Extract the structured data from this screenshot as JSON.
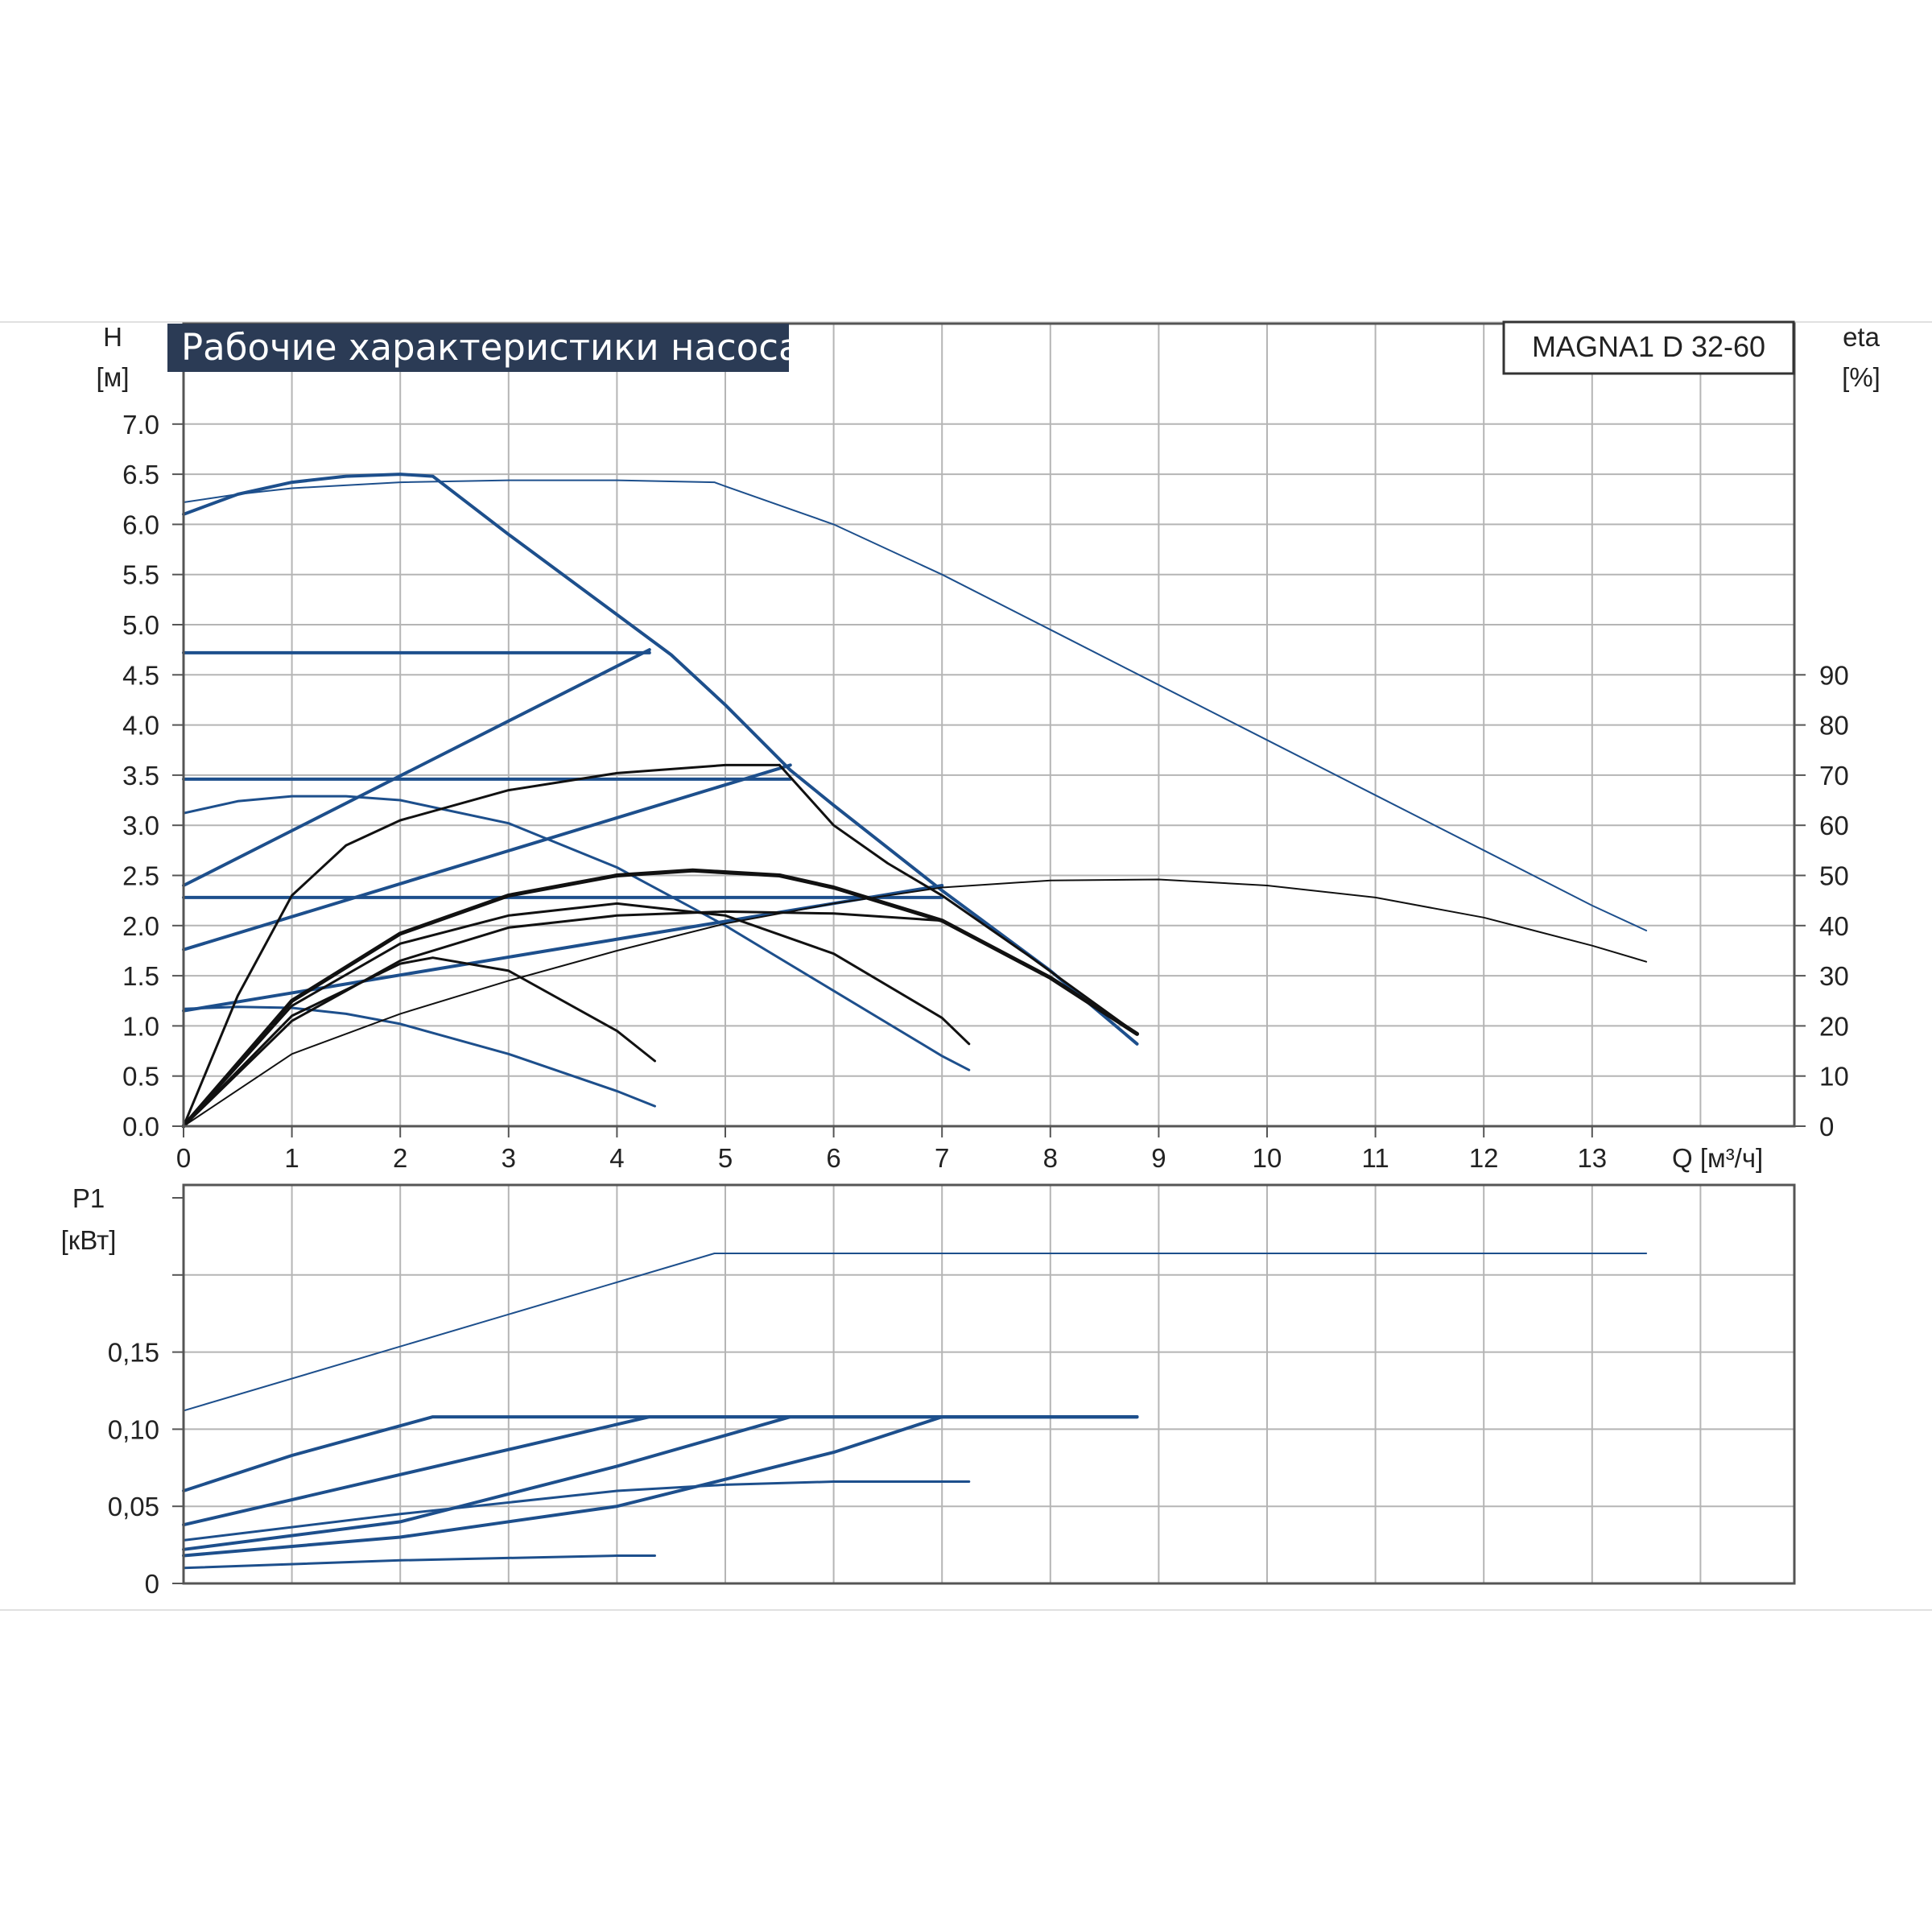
{
  "colors": {
    "blue": "#1d4f8c",
    "black": "#111111",
    "grid": "#b5b5b5",
    "title_bg": "#2b3b55",
    "frame": "#555555"
  },
  "chart_data": [
    {
      "type": "line",
      "title": "Рабочие характеристики насоса",
      "model": "MAGNA1 D 32-60",
      "ylabel": "H",
      "ylabel_unit": "[м]",
      "y2label": "eta",
      "y2label_unit": "[%]",
      "xlabel": "Q [м³/ч]",
      "xlim": [
        0,
        14.2
      ],
      "ylim": [
        0,
        7.4
      ],
      "y2lim": [
        0,
        100
      ],
      "x_ticks": [
        "0",
        "1",
        "2",
        "3",
        "4",
        "5",
        "6",
        "7",
        "8",
        "9",
        "10",
        "11",
        "12",
        "13"
      ],
      "y_ticks": [
        "0.0",
        "0.5",
        "1.0",
        "1.5",
        "2.0",
        "2.5",
        "3.0",
        "3.5",
        "4.0",
        "4.5",
        "5.0",
        "5.5",
        "6.0",
        "6.5",
        "7.0"
      ],
      "y2_ticks": [
        "0",
        "10",
        "20",
        "30",
        "40",
        "50",
        "60",
        "70",
        "80",
        "90"
      ],
      "grid": true,
      "series": [
        {
          "kind": "head",
          "color": "blue",
          "width": 2,
          "x": [
            0,
            0.5,
            1,
            2,
            3,
            4,
            4.9,
            5,
            6,
            7,
            8,
            9,
            10,
            11,
            12,
            13,
            13.5
          ],
          "y": [
            6.22,
            6.3,
            6.36,
            6.42,
            6.44,
            6.44,
            6.42,
            6.38,
            6.0,
            5.5,
            4.95,
            4.4,
            3.85,
            3.3,
            2.75,
            2.2,
            1.95
          ]
        },
        {
          "kind": "head",
          "color": "blue",
          "width": 4,
          "x": [
            0,
            0.5,
            1,
            1.5,
            2,
            2.3,
            3,
            4,
            4.5,
            5,
            5.6,
            6,
            7,
            8,
            8.8
          ],
          "y": [
            6.1,
            6.3,
            6.42,
            6.48,
            6.5,
            6.48,
            5.9,
            5.1,
            4.7,
            4.2,
            3.55,
            3.2,
            2.35,
            1.55,
            0.82
          ]
        },
        {
          "kind": "head",
          "color": "blue",
          "width": 4,
          "x": [
            0,
            4.3
          ],
          "y": [
            4.72,
            4.72
          ]
        },
        {
          "kind": "head",
          "color": "blue",
          "width": 4,
          "x": [
            0,
            5.6
          ],
          "y": [
            3.46,
            3.46
          ]
        },
        {
          "kind": "head",
          "color": "blue",
          "width": 4,
          "x": [
            0,
            7.0
          ],
          "y": [
            2.28,
            2.28
          ]
        },
        {
          "kind": "head",
          "color": "blue",
          "width": 4,
          "x": [
            0,
            4.3
          ],
          "y": [
            2.4,
            4.75
          ]
        },
        {
          "kind": "head",
          "color": "blue",
          "width": 4,
          "x": [
            0,
            5.6
          ],
          "y": [
            1.76,
            3.6
          ]
        },
        {
          "kind": "head",
          "color": "blue",
          "width": 4,
          "x": [
            0,
            7.0
          ],
          "y": [
            1.15,
            2.4
          ]
        },
        {
          "kind": "head",
          "color": "blue",
          "width": 3,
          "x": [
            0,
            0.5,
            1,
            1.5,
            2,
            3,
            4,
            5,
            6,
            7,
            7.25
          ],
          "y": [
            3.12,
            3.24,
            3.29,
            3.29,
            3.25,
            3.02,
            2.58,
            2.0,
            1.35,
            0.7,
            0.56
          ]
        },
        {
          "kind": "head",
          "color": "blue",
          "width": 3,
          "x": [
            0,
            0.5,
            1,
            1.5,
            2,
            3,
            4,
            4.35
          ],
          "y": [
            1.17,
            1.19,
            1.18,
            1.12,
            1.02,
            0.72,
            0.35,
            0.2
          ]
        },
        {
          "kind": "efficiency",
          "color": "black",
          "width": 3,
          "x": [
            0,
            0.5,
            1,
            1.5,
            2,
            3,
            4,
            5,
            5.5
          ],
          "y": [
            0,
            1.3,
            2.3,
            2.8,
            3.05,
            3.35,
            3.52,
            3.6,
            3.6
          ]
        },
        {
          "kind": "efficiency",
          "color": "black",
          "width": 3,
          "x": [
            5.5,
            6,
            6.5,
            7,
            7.8,
            8.8
          ],
          "y": [
            3.6,
            3.0,
            2.62,
            2.3,
            1.7,
            0.92
          ]
        },
        {
          "kind": "efficiency",
          "color": "black",
          "width": 5,
          "x": [
            0,
            1,
            2,
            3,
            4,
            4.7,
            5.5,
            6,
            7,
            8,
            8.8
          ],
          "y": [
            0,
            1.25,
            1.92,
            2.3,
            2.5,
            2.55,
            2.5,
            2.38,
            2.05,
            1.48,
            0.92
          ]
        },
        {
          "kind": "efficiency",
          "color": "black",
          "width": 3,
          "x": [
            0,
            1,
            2,
            3,
            4,
            5,
            6,
            7,
            7.25
          ],
          "y": [
            0,
            1.2,
            1.82,
            2.1,
            2.22,
            2.1,
            1.72,
            1.08,
            0.82
          ]
        },
        {
          "kind": "efficiency",
          "color": "black",
          "width": 3,
          "x": [
            0,
            1,
            2,
            2.3,
            3,
            4,
            4.35
          ],
          "y": [
            0,
            1.1,
            1.62,
            1.68,
            1.55,
            0.95,
            0.65
          ]
        },
        {
          "kind": "efficiency",
          "color": "black",
          "width": 3,
          "x": [
            0,
            1,
            2,
            3,
            4,
            5,
            6,
            7
          ],
          "y": [
            0,
            1.05,
            1.65,
            1.98,
            2.1,
            2.14,
            2.12,
            2.05
          ]
        },
        {
          "kind": "efficiency",
          "color": "black",
          "width": 2,
          "x": [
            0,
            1,
            2,
            3,
            4,
            5,
            6,
            7,
            8,
            9,
            10,
            11,
            12,
            13,
            13.5
          ],
          "y": [
            0,
            0.72,
            1.12,
            1.45,
            1.75,
            2.02,
            2.22,
            2.38,
            2.45,
            2.46,
            2.4,
            2.28,
            2.08,
            1.8,
            1.64
          ]
        }
      ]
    },
    {
      "type": "line",
      "ylabel": "P1",
      "ylabel_unit": "[кВт]",
      "xlim": [
        0,
        14.2
      ],
      "ylim": [
        0,
        0.25
      ],
      "y_ticks": [
        "0",
        "0,05",
        "0,10",
        "0,15"
      ],
      "y_tick_values": [
        0,
        0.05,
        0.1,
        0.15
      ],
      "grid": true,
      "series": [
        {
          "color": "blue",
          "width": 2,
          "x": [
            0,
            4.9,
            13.5
          ],
          "y": [
            0.112,
            0.214,
            0.214
          ]
        },
        {
          "color": "blue",
          "width": 4,
          "x": [
            0,
            1,
            2.3,
            8.8
          ],
          "y": [
            0.06,
            0.083,
            0.108,
            0.108
          ]
        },
        {
          "color": "blue",
          "width": 4,
          "x": [
            0,
            4.3,
            8.8
          ],
          "y": [
            0.038,
            0.108,
            0.108
          ]
        },
        {
          "color": "blue",
          "width": 4,
          "x": [
            0,
            2,
            4,
            5.6,
            8.8
          ],
          "y": [
            0.022,
            0.04,
            0.076,
            0.108,
            0.108
          ]
        },
        {
          "color": "blue",
          "width": 4,
          "x": [
            0,
            2,
            4,
            6,
            7.0,
            8.8
          ],
          "y": [
            0.018,
            0.03,
            0.05,
            0.085,
            0.108,
            0.108
          ]
        },
        {
          "color": "blue",
          "width": 3,
          "x": [
            0,
            2,
            4,
            5,
            6,
            7.25
          ],
          "y": [
            0.028,
            0.045,
            0.06,
            0.064,
            0.066,
            0.066
          ]
        },
        {
          "color": "blue",
          "width": 3,
          "x": [
            0,
            2,
            4,
            4.35
          ],
          "y": [
            0.01,
            0.015,
            0.018,
            0.018
          ]
        }
      ]
    }
  ]
}
